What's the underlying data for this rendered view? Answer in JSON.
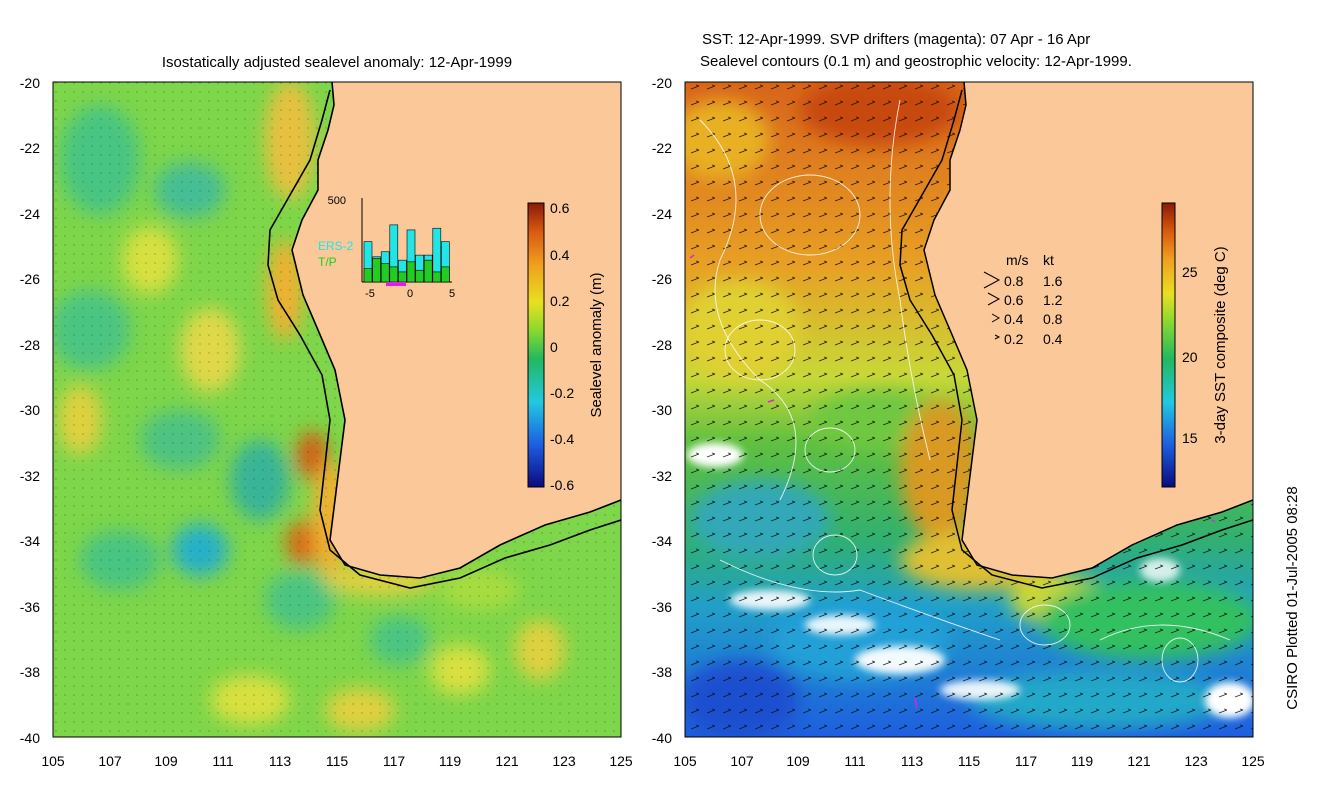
{
  "left_panel": {
    "title": "Isostatically adjusted sealevel anomaly: 12-Apr-1999",
    "x_ticks": [
      "105",
      "107",
      "109",
      "111",
      "113",
      "115",
      "117",
      "119",
      "121",
      "123",
      "125"
    ],
    "y_ticks": [
      "-20",
      "-22",
      "-24",
      "-26",
      "-28",
      "-30",
      "-32",
      "-34",
      "-36",
      "-38",
      "-40"
    ],
    "colorbar": {
      "label": "Sealevel anomaly (m)",
      "ticks": [
        "0.6",
        "0.4",
        "0.2",
        "0",
        "-0.2",
        "-0.4",
        "-0.6"
      ]
    },
    "inset": {
      "y_label": "500",
      "x_ticks": [
        "-5",
        "0",
        "5"
      ],
      "legend": [
        {
          "label": "ERS-2",
          "color": "#22e5e5"
        },
        {
          "label": "T/P",
          "color": "#22cc22"
        }
      ],
      "ers2_bars": [
        240,
        150,
        180,
        340,
        130,
        310,
        160,
        160,
        320,
        240
      ],
      "tp_bars": [
        80,
        140,
        110,
        90,
        60,
        120,
        70,
        130,
        60,
        90
      ]
    }
  },
  "right_panel": {
    "title_line1": "SST: 12-Apr-1999. SVP drifters (magenta): 07 Apr - 16 Apr",
    "title_line2": "Sealevel contours (0.1 m) and geostrophic velocity: 12-Apr-1999.",
    "x_ticks": [
      "105",
      "107",
      "109",
      "111",
      "113",
      "115",
      "117",
      "119",
      "121",
      "123",
      "125"
    ],
    "y_ticks": [
      "-20",
      "-22",
      "-24",
      "-26",
      "-28",
      "-30",
      "-32",
      "-34",
      "-36",
      "-38",
      "-40"
    ],
    "colorbar": {
      "label": "3-day SST composite (deg C)",
      "ticks": [
        "25",
        "20",
        "15"
      ]
    },
    "velocity_legend": {
      "header_ms": "m/s",
      "header_kt": "kt",
      "rows": [
        {
          "ms": "0.8",
          "kt": "1.6"
        },
        {
          "ms": "0.6",
          "kt": "1.2"
        },
        {
          "ms": "0.4",
          "kt": "0.8"
        },
        {
          "ms": "0.2",
          "kt": "0.4"
        }
      ]
    }
  },
  "footer": "CSIRO Plotted 01-Jul-2005 08:28",
  "colors": {
    "land": "#fbc89a",
    "ocean_mid": "#7ed64a",
    "coast": "#000000"
  }
}
